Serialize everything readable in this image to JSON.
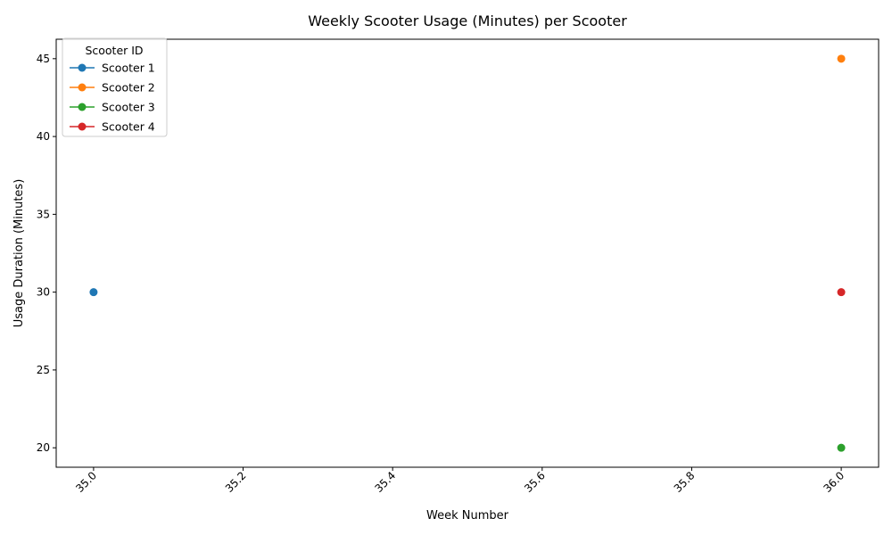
{
  "chart_data": {
    "type": "line",
    "title": "Weekly Scooter Usage (Minutes) per Scooter",
    "xlabel": "Week Number",
    "ylabel": "Usage Duration (Minutes)",
    "xlim": [
      34.95,
      36.05
    ],
    "ylim": [
      18.75,
      46.25
    ],
    "xticks": [
      35.0,
      35.2,
      35.4,
      35.6,
      35.8,
      36.0
    ],
    "xtick_labels": [
      "35.0",
      "35.2",
      "35.4",
      "35.6",
      "35.8",
      "36.0"
    ],
    "yticks": [
      20,
      25,
      30,
      35,
      40,
      45
    ],
    "ytick_labels": [
      "20",
      "25",
      "30",
      "35",
      "40",
      "45"
    ],
    "grid": false,
    "legend": {
      "title": "Scooter ID",
      "placement": "top-left"
    },
    "series": [
      {
        "name": "Scooter 1",
        "color": "#1f77b4",
        "points": [
          {
            "x": 35,
            "y": 30
          }
        ]
      },
      {
        "name": "Scooter 2",
        "color": "#ff7f0e",
        "points": [
          {
            "x": 36,
            "y": 45
          }
        ]
      },
      {
        "name": "Scooter 3",
        "color": "#2ca02c",
        "points": [
          {
            "x": 36,
            "y": 20
          }
        ]
      },
      {
        "name": "Scooter 4",
        "color": "#d62728",
        "points": [
          {
            "x": 36,
            "y": 30
          }
        ]
      }
    ]
  }
}
